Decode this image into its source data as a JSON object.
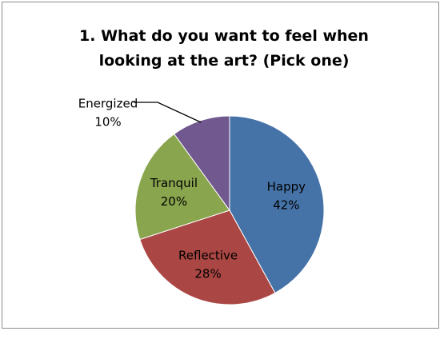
{
  "chart_data": {
    "type": "pie",
    "title": "1. What do you want to feel when looking at the art? (Pick one)",
    "categories": [
      "Happy",
      "Reflective",
      "Tranquil",
      "Energized"
    ],
    "values": [
      42,
      28,
      20,
      10
    ],
    "value_labels": [
      "42%",
      "28%",
      "20%",
      "10%"
    ],
    "colors": [
      "#4572a7",
      "#aa4643",
      "#89a54e",
      "#71588f"
    ]
  }
}
